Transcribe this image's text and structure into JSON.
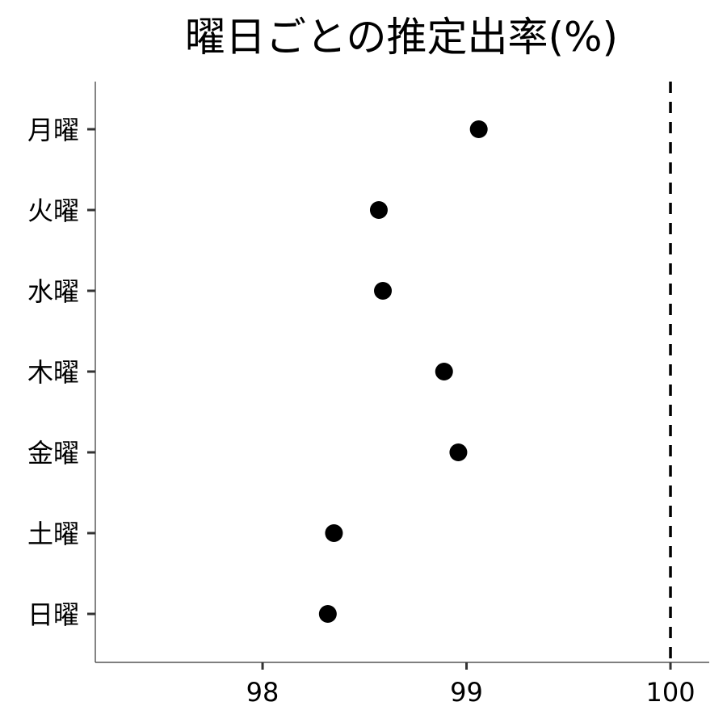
{
  "chart_data": {
    "type": "scatter",
    "title": "曜日ごとの推定出率(%)",
    "xlabel": "",
    "ylabel": "",
    "categories": [
      "月曜",
      "火曜",
      "水曜",
      "木曜",
      "金曜",
      "土曜",
      "日曜"
    ],
    "values": [
      99.06,
      98.57,
      98.59,
      98.89,
      98.96,
      98.35,
      98.32
    ],
    "xlim": [
      97.18,
      100.19
    ],
    "x_ticks": [
      98,
      99,
      100
    ],
    "x_tick_labels": [
      "98",
      "99",
      "100"
    ],
    "reference_line": {
      "x": 100,
      "style": "dashed"
    },
    "grid": false,
    "legend": "none",
    "colors": {
      "point": "#000000",
      "axis": "#333333",
      "reference": "#000000"
    }
  }
}
